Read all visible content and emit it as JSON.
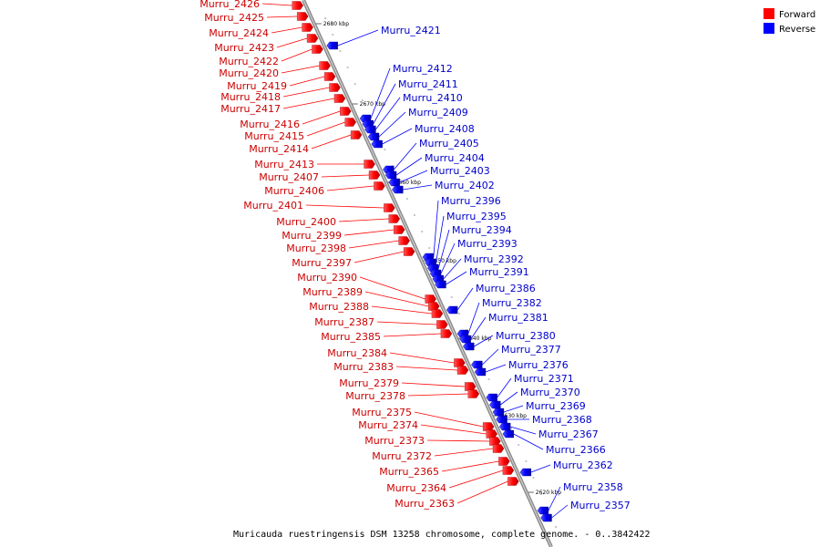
{
  "caption": "Muricauda ruestringensis DSM 13258 chromosome, complete genome. - 0..3842422",
  "legend": {
    "forward": {
      "label": "Forward",
      "color": "#ff0000"
    },
    "reverse": {
      "label": "Reverse",
      "color": "#0000ff"
    }
  },
  "ticks": [
    "2680 kbp",
    "2670 kbp",
    "2660 kbp",
    "2650 kbp",
    "2640 kbp",
    "2630 kbp",
    "2620 kbp"
  ],
  "forward_labels": [
    "Murru_2426",
    "Murru_2425",
    "Murru_2424",
    "Murru_2423",
    "Murru_2422",
    "Murru_2420",
    "Murru_2419",
    "Murru_2418",
    "Murru_2417",
    "Murru_2416",
    "Murru_2415",
    "Murru_2414",
    "Murru_2413",
    "Murru_2407",
    "Murru_2406",
    "Murru_2401",
    "Murru_2400",
    "Murru_2399",
    "Murru_2398",
    "Murru_2397",
    "Murru_2390",
    "Murru_2389",
    "Murru_2388",
    "Murru_2387",
    "Murru_2385",
    "Murru_2384",
    "Murru_2383",
    "Murru_2379",
    "Murru_2378",
    "Murru_2375",
    "Murru_2374",
    "Murru_2373",
    "Murru_2372",
    "Murru_2365",
    "Murru_2364",
    "Murru_2363"
  ],
  "reverse_labels": [
    "Murru_2421",
    "Murru_2412",
    "Murru_2411",
    "Murru_2410",
    "Murru_2409",
    "Murru_2408",
    "Murru_2405",
    "Murru_2404",
    "Murru_2403",
    "Murru_2402",
    "Murru_2396",
    "Murru_2395",
    "Murru_2394",
    "Murru_2393",
    "Murru_2392",
    "Murru_2391",
    "Murru_2386",
    "Murru_2382",
    "Murru_2381",
    "Murru_2380",
    "Murru_2377",
    "Murru_2376",
    "Murru_2371",
    "Murru_2370",
    "Murru_2369",
    "Murru_2368",
    "Murru_2367",
    "Murru_2366",
    "Murru_2362",
    "Murru_2358",
    "Murru_2357"
  ]
}
